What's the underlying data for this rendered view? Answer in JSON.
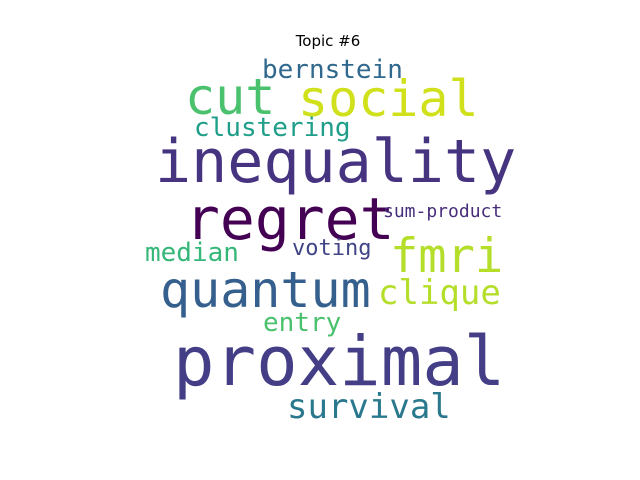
{
  "title": "Topic #6",
  "words": [
    {
      "text": "proximal",
      "color": "#433e85"
    },
    {
      "text": "inequality",
      "color": "#463480"
    },
    {
      "text": "regret",
      "color": "#440154"
    },
    {
      "text": "quantum",
      "color": "#355f8d"
    },
    {
      "text": "social",
      "color": "#d0e11c"
    },
    {
      "text": "cut",
      "color": "#4ac16d"
    },
    {
      "text": "fmri",
      "color": "#b5de2b"
    },
    {
      "text": "clique",
      "color": "#b5de2b"
    },
    {
      "text": "survival",
      "color": "#2a788e"
    },
    {
      "text": "clustering",
      "color": "#1f9e89"
    },
    {
      "text": "bernstein",
      "color": "#31688e"
    },
    {
      "text": "median",
      "color": "#35b779"
    },
    {
      "text": "entry",
      "color": "#4ac16d"
    },
    {
      "text": "voting",
      "color": "#414487"
    },
    {
      "text": "sum-product",
      "color": "#472d7b"
    }
  ]
}
